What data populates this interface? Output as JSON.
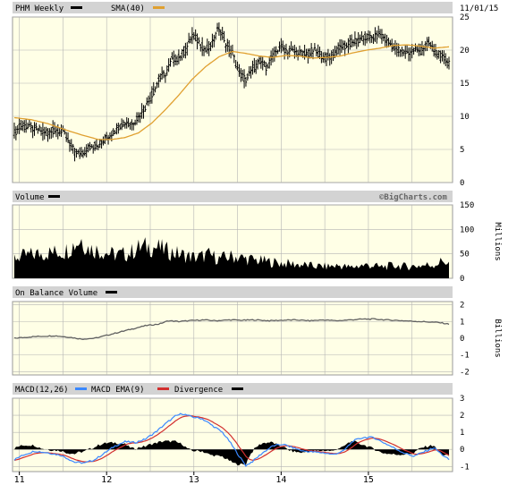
{
  "header": {
    "symbol_label": "PHM Weekly",
    "sma_label": "SMA(40)",
    "date": "11/01/15",
    "watermark": "©BigCharts.com"
  },
  "colors": {
    "plot_bg": "#ffffe6",
    "header_bg": "#d3d3d3",
    "grid": "#b4b4b4",
    "price": "#000000",
    "sma": "#e0a030",
    "volume": "#000000",
    "obv": "#606060",
    "macd": "#3a88ff",
    "ema": "#d23030",
    "divergence": "#000000"
  },
  "x_axis": {
    "labels": [
      {
        "text": "11",
        "week": 3
      },
      {
        "text": "12",
        "week": 55
      },
      {
        "text": "13",
        "week": 107
      },
      {
        "text": "14",
        "week": 159
      },
      {
        "text": "15",
        "week": 211
      }
    ],
    "total_weeks": 260
  },
  "panels": {
    "volume": {
      "label": "Volume",
      "unit": "Millions",
      "ticks": [
        "150",
        "100",
        "50",
        "0"
      ],
      "tick_values": [
        150,
        100,
        50,
        0
      ]
    },
    "obv": {
      "label": "On Balance Volume",
      "unit": "Billions",
      "ticks": [
        "2",
        "1",
        "0",
        "-1",
        "-2"
      ],
      "tick_values": [
        2,
        1,
        0,
        -1,
        -2
      ]
    },
    "macd": {
      "label": "MACD(12,26)",
      "ema_label": "MACD EMA(9)",
      "div_label": "Divergence",
      "ticks": [
        "3",
        "2",
        "1",
        "0",
        "-1"
      ],
      "tick_values": [
        3,
        2,
        1,
        0,
        -1
      ]
    }
  },
  "chart_data": {
    "type": "line",
    "title": "PHM Weekly",
    "x_unit": "week index from start (years 11 to 15 labeled)",
    "price_axis": {
      "ticks": [
        25,
        20,
        15,
        10,
        5,
        0
      ],
      "ylim": [
        0,
        25
      ]
    },
    "price_keypoints": [
      [
        0,
        7.5
      ],
      [
        4,
        8.5
      ],
      [
        8,
        8.3
      ],
      [
        14,
        8.0
      ],
      [
        20,
        7.6
      ],
      [
        26,
        8.0
      ],
      [
        30,
        7.3
      ],
      [
        36,
        4.5
      ],
      [
        40,
        4.2
      ],
      [
        44,
        5.2
      ],
      [
        50,
        5.8
      ],
      [
        54,
        6.5
      ],
      [
        58,
        7.5
      ],
      [
        62,
        8.5
      ],
      [
        66,
        9.2
      ],
      [
        70,
        8.9
      ],
      [
        74,
        10.0
      ],
      [
        78,
        11.5
      ],
      [
        82,
        13.2
      ],
      [
        86,
        15.5
      ],
      [
        90,
        16.5
      ],
      [
        94,
        18.5
      ],
      [
        98,
        18.9
      ],
      [
        102,
        20.0
      ],
      [
        106,
        22.3
      ],
      [
        110,
        21.2
      ],
      [
        114,
        19.9
      ],
      [
        118,
        21.0
      ],
      [
        122,
        23.5
      ],
      [
        126,
        21.0
      ],
      [
        130,
        19.5
      ],
      [
        134,
        16.5
      ],
      [
        138,
        15.5
      ],
      [
        142,
        17.0
      ],
      [
        146,
        18.2
      ],
      [
        150,
        17.5
      ],
      [
        154,
        19.0
      ],
      [
        158,
        20.5
      ],
      [
        162,
        20.0
      ],
      [
        166,
        19.8
      ],
      [
        170,
        19.5
      ],
      [
        174,
        19.2
      ],
      [
        178,
        20.0
      ],
      [
        182,
        19.4
      ],
      [
        186,
        18.8
      ],
      [
        190,
        19.3
      ],
      [
        194,
        20.5
      ],
      [
        198,
        20.6
      ],
      [
        202,
        21.3
      ],
      [
        206,
        21.4
      ],
      [
        210,
        22.0
      ],
      [
        214,
        21.8
      ],
      [
        218,
        22.5
      ],
      [
        222,
        21.3
      ],
      [
        226,
        20.5
      ],
      [
        230,
        19.8
      ],
      [
        234,
        19.6
      ],
      [
        238,
        20.0
      ],
      [
        242,
        19.8
      ],
      [
        246,
        21.0
      ],
      [
        250,
        20.0
      ],
      [
        254,
        19.0
      ],
      [
        259,
        18.2
      ]
    ],
    "sma40_keypoints": [
      [
        0,
        9.8
      ],
      [
        10,
        9.5
      ],
      [
        20,
        8.9
      ],
      [
        30,
        8.0
      ],
      [
        40,
        7.2
      ],
      [
        50,
        6.5
      ],
      [
        58,
        6.5
      ],
      [
        66,
        6.8
      ],
      [
        74,
        7.5
      ],
      [
        82,
        9.0
      ],
      [
        90,
        11.0
      ],
      [
        98,
        13.2
      ],
      [
        106,
        15.6
      ],
      [
        114,
        17.5
      ],
      [
        122,
        19.0
      ],
      [
        130,
        19.8
      ],
      [
        138,
        19.5
      ],
      [
        146,
        19.1
      ],
      [
        154,
        18.9
      ],
      [
        162,
        19.2
      ],
      [
        170,
        19.1
      ],
      [
        178,
        18.8
      ],
      [
        186,
        18.9
      ],
      [
        194,
        19.1
      ],
      [
        202,
        19.6
      ],
      [
        210,
        20.0
      ],
      [
        218,
        20.3
      ],
      [
        226,
        20.7
      ],
      [
        234,
        20.8
      ],
      [
        242,
        20.6
      ],
      [
        250,
        20.3
      ],
      [
        259,
        20.5
      ]
    ],
    "volume_keypoints": [
      [
        0,
        42
      ],
      [
        10,
        48
      ],
      [
        20,
        52
      ],
      [
        30,
        55
      ],
      [
        36,
        70
      ],
      [
        40,
        80
      ],
      [
        44,
        62
      ],
      [
        52,
        55
      ],
      [
        60,
        48
      ],
      [
        68,
        50
      ],
      [
        74,
        62
      ],
      [
        80,
        65
      ],
      [
        86,
        62
      ],
      [
        92,
        55
      ],
      [
        100,
        48
      ],
      [
        108,
        42
      ],
      [
        116,
        48
      ],
      [
        122,
        40
      ],
      [
        130,
        45
      ],
      [
        138,
        40
      ],
      [
        146,
        36
      ],
      [
        154,
        33
      ],
      [
        162,
        30
      ],
      [
        170,
        28
      ],
      [
        178,
        25
      ],
      [
        186,
        24
      ],
      [
        194,
        26
      ],
      [
        200,
        22
      ],
      [
        206,
        26
      ],
      [
        212,
        27
      ],
      [
        218,
        23
      ],
      [
        226,
        26
      ],
      [
        234,
        24
      ],
      [
        242,
        26
      ],
      [
        250,
        28
      ],
      [
        256,
        36
      ],
      [
        259,
        30
      ]
    ],
    "obv_keypoints": [
      [
        0,
        0.0
      ],
      [
        12,
        0.1
      ],
      [
        24,
        0.15
      ],
      [
        34,
        0.05
      ],
      [
        40,
        -0.05
      ],
      [
        48,
        0.0
      ],
      [
        56,
        0.2
      ],
      [
        62,
        0.35
      ],
      [
        70,
        0.55
      ],
      [
        78,
        0.75
      ],
      [
        86,
        0.85
      ],
      [
        92,
        1.05
      ],
      [
        98,
        1.0
      ],
      [
        104,
        1.05
      ],
      [
        112,
        1.1
      ],
      [
        120,
        1.05
      ],
      [
        128,
        1.1
      ],
      [
        136,
        1.08
      ],
      [
        144,
        1.1
      ],
      [
        152,
        1.05
      ],
      [
        160,
        1.08
      ],
      [
        168,
        1.1
      ],
      [
        176,
        1.05
      ],
      [
        184,
        1.1
      ],
      [
        192,
        1.05
      ],
      [
        200,
        1.1
      ],
      [
        208,
        1.15
      ],
      [
        214,
        1.15
      ],
      [
        222,
        1.1
      ],
      [
        232,
        1.05
      ],
      [
        242,
        1.0
      ],
      [
        252,
        0.95
      ],
      [
        259,
        0.85
      ]
    ],
    "macd_keypoints": [
      [
        0,
        -0.6
      ],
      [
        6,
        -0.3
      ],
      [
        12,
        -0.1
      ],
      [
        20,
        -0.2
      ],
      [
        28,
        -0.35
      ],
      [
        36,
        -0.75
      ],
      [
        42,
        -0.8
      ],
      [
        48,
        -0.6
      ],
      [
        54,
        -0.2
      ],
      [
        60,
        0.2
      ],
      [
        66,
        0.45
      ],
      [
        72,
        0.4
      ],
      [
        78,
        0.6
      ],
      [
        84,
        1.0
      ],
      [
        90,
        1.5
      ],
      [
        96,
        1.95
      ],
      [
        100,
        2.1
      ],
      [
        106,
        1.9
      ],
      [
        112,
        1.8
      ],
      [
        118,
        1.4
      ],
      [
        124,
        1.0
      ],
      [
        128,
        0.5
      ],
      [
        134,
        -0.4
      ],
      [
        138,
        -0.95
      ],
      [
        142,
        -0.7
      ],
      [
        148,
        -0.2
      ],
      [
        154,
        0.2
      ],
      [
        160,
        0.3
      ],
      [
        166,
        0.1
      ],
      [
        172,
        -0.1
      ],
      [
        178,
        -0.15
      ],
      [
        184,
        -0.2
      ],
      [
        190,
        -0.3
      ],
      [
        196,
        -0.1
      ],
      [
        202,
        0.5
      ],
      [
        208,
        0.7
      ],
      [
        214,
        0.7
      ],
      [
        220,
        0.4
      ],
      [
        226,
        0.1
      ],
      [
        232,
        -0.2
      ],
      [
        238,
        -0.4
      ],
      [
        244,
        -0.15
      ],
      [
        250,
        0.1
      ],
      [
        256,
        -0.4
      ],
      [
        259,
        -0.6
      ]
    ],
    "macd_axis": {
      "ylim": [
        -1.3,
        3.0
      ]
    },
    "volume_axis": {
      "ylim": [
        0,
        150
      ]
    },
    "obv_axis": {
      "ylim": [
        -2.2,
        2.2
      ]
    }
  }
}
